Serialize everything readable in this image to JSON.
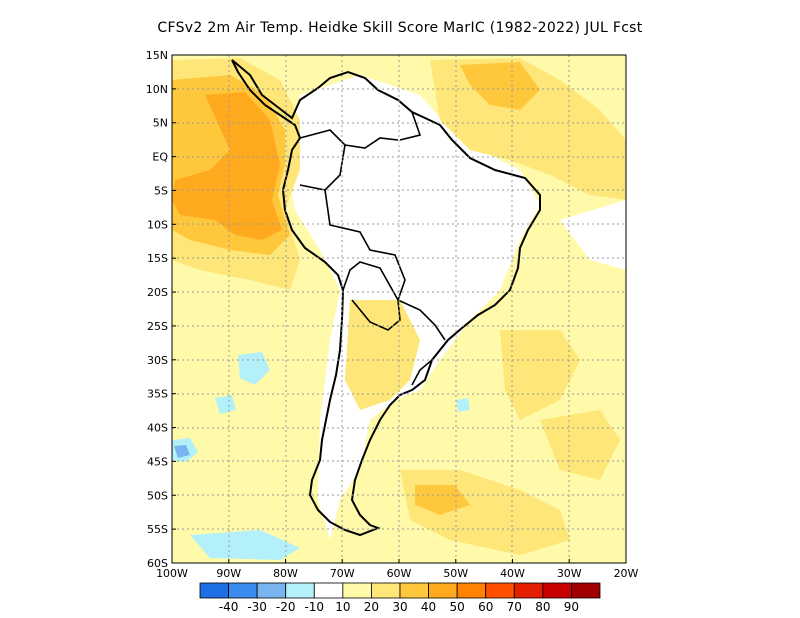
{
  "title": "CFSv2  2m Air Temp. Heidke Skill Score MarIC (1982-2022) JUL Fcst",
  "map": {
    "lat_labels": [
      "15N",
      "10N",
      "5N",
      "EQ",
      "5S",
      "10S",
      "15S",
      "20S",
      "25S",
      "30S",
      "35S",
      "40S",
      "45S",
      "50S",
      "55S",
      "60S"
    ],
    "lon_labels": [
      "100W",
      "90W",
      "80W",
      "70W",
      "60W",
      "50W",
      "40W",
      "30W",
      "20W"
    ],
    "lat_range": [
      15,
      -60
    ],
    "lon_range": [
      -100,
      -20
    ],
    "grid": true
  },
  "colorbar": {
    "colors": [
      "#1e6ee6",
      "#3c8cf0",
      "#78b4f0",
      "#b4f0fa",
      "#ffffff",
      "#fffaaa",
      "#ffe678",
      "#ffc83c",
      "#ffaa1e",
      "#ff8200",
      "#ff5000",
      "#e61e00",
      "#c80000",
      "#a00000"
    ],
    "labels": [
      "-40",
      "-30",
      "-20",
      "-10",
      "10",
      "20",
      "30",
      "40",
      "50",
      "60",
      "70",
      "80",
      "90"
    ]
  }
}
